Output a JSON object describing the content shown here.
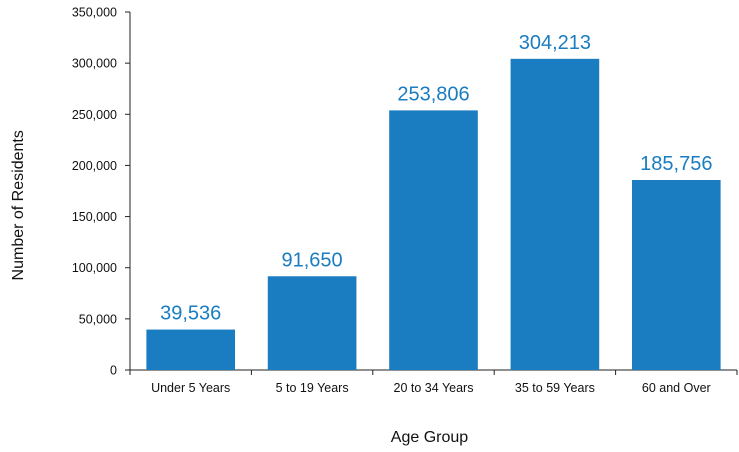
{
  "chart_data": {
    "type": "bar",
    "categories": [
      "Under 5 Years",
      "5 to 19 Years",
      "20 to 34 Years",
      "35 to 59 Years",
      "60 and Over"
    ],
    "values": [
      39536,
      91650,
      253806,
      304213,
      185756
    ],
    "data_labels": [
      "39,536",
      "91,650",
      "253,806",
      "304,213",
      "185,756"
    ],
    "title": "",
    "xlabel": "Age Group",
    "ylabel": "Number of Residents",
    "ylim": [
      0,
      350000
    ],
    "yticks": [
      0,
      50000,
      100000,
      150000,
      200000,
      250000,
      300000,
      350000
    ],
    "ytick_labels": [
      "0",
      "50,000",
      "100,000",
      "150,000",
      "200,000",
      "250,000",
      "300,000",
      "350,000"
    ],
    "grid": false,
    "legend": "none",
    "bar_color": "#1a7cc1",
    "label_color": "#1a7cc1"
  }
}
